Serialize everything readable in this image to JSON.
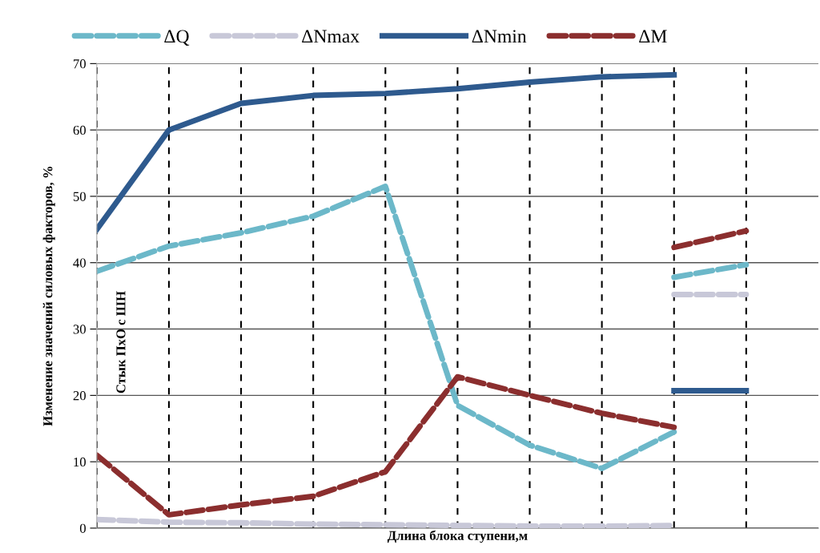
{
  "chart_data": {
    "type": "line",
    "xlabel": "Длина блока ступени,м",
    "ylabel": "Изменение значений силовых факторов, %",
    "annotations": [
      "Стык ПхО с ШН"
    ],
    "categories": [
      null,
      null,
      null,
      null,
      null,
      null,
      null,
      null,
      null,
      null
    ],
    "ylim": [
      0,
      70
    ],
    "yticks": [
      0,
      10,
      20,
      30,
      40,
      50,
      60,
      70
    ],
    "tick_labels": "y",
    "grid": true,
    "legend": "top",
    "marker": "none",
    "series": [
      {
        "name": "ΔQ",
        "color": "#6cb8c9",
        "line_style": "dashed",
        "values": [
          38.7,
          42.5,
          44.5,
          47,
          51.5,
          18.5,
          12.5,
          9,
          14.5,
          null
        ]
      },
      {
        "name": "ΔNmax",
        "color": "#c8c8d8",
        "line_style": "dashed",
        "values": [
          1.3,
          0.9,
          0.8,
          0.6,
          0.5,
          0.4,
          0.3,
          0.3,
          0.4,
          null
        ]
      },
      {
        "name": "ΔNmin",
        "color": "#2e5a8e",
        "line_style": "solid",
        "values": [
          45,
          60,
          64,
          65.2,
          65.5,
          66.2,
          67.2,
          68,
          68.3,
          null
        ]
      },
      {
        "name": "ΔM",
        "color": "#8b2e2e",
        "line_style": "dashed",
        "values": [
          11,
          2,
          3.5,
          4.8,
          8.5,
          22.8,
          20,
          17.3,
          15.2,
          null
        ]
      },
      {
        "color": "#6cb8c9",
        "line_style": "dashed",
        "values": [
          null,
          null,
          null,
          null,
          null,
          null,
          null,
          null,
          37.8,
          39.7
        ]
      },
      {
        "color": "#c8c8d8",
        "line_style": "dashed",
        "values": [
          null,
          null,
          null,
          null,
          null,
          null,
          null,
          null,
          35.2,
          35.2
        ]
      },
      {
        "color": "#2e5a8e",
        "line_style": "solid",
        "values": [
          null,
          null,
          null,
          null,
          null,
          null,
          null,
          null,
          20.7,
          20.7
        ]
      },
      {
        "color": "#8b2e2e",
        "line_style": "dashed",
        "values": [
          null,
          null,
          null,
          null,
          null,
          null,
          null,
          null,
          42.3,
          44.8
        ]
      }
    ]
  }
}
